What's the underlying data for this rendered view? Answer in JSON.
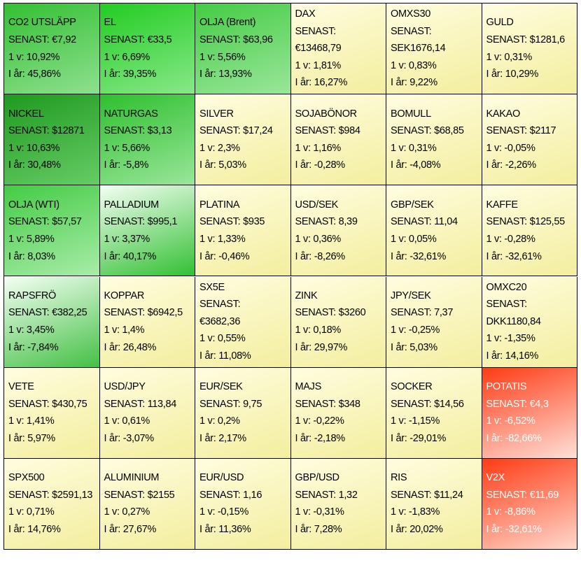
{
  "grid": {
    "rows": [
      [
        {
          "lines": [
            "CO2 UTSLÄPP",
            "SENAST: €7,92",
            "1 v: 10,92%",
            "I år: 45,86%"
          ],
          "colors": [
            "#33c033",
            "#8ee08e"
          ]
        },
        {
          "lines": [
            "EL",
            "SENAST: €33,5",
            "1 v: 6,69%",
            "I år: 39,35%"
          ],
          "colors": [
            "#22cc22",
            "#88e888"
          ]
        },
        {
          "lines": [
            "OLJA (Brent)",
            "SENAST: $63,96",
            "1 v: 5,56%",
            "I år: 13,93%"
          ],
          "colors": [
            "#44cc44",
            "#99e699"
          ]
        },
        {
          "lines": [
            "DAX",
            "SENAST:",
            "€13468,79",
            "1 v: 1,81%",
            "I år: 16,27%"
          ],
          "colors": [
            "#fffde0",
            "#f3ee9e"
          ]
        },
        {
          "lines": [
            "OMXS30",
            "SENAST:",
            "SEK1676,14",
            "1 v: 0,83%",
            "I år: 9,22%"
          ],
          "colors": [
            "#fffde0",
            "#f3ee9e"
          ]
        },
        {
          "lines": [
            "GULD",
            "SENAST: $1281,6",
            "1 v: 0,31%",
            "I år: 10,29%"
          ],
          "colors": [
            "#fffde0",
            "#f3ee9e"
          ]
        }
      ],
      [
        {
          "lines": [
            "NICKEL",
            "SENAST: $12871",
            "1 v: 10,63%",
            "I år: 30,48%"
          ],
          "colors": [
            "#1f9a1f",
            "#66cc66"
          ]
        },
        {
          "lines": [
            "NATURGAS",
            "SENAST: $3,13",
            "1 v: 5,66%",
            "I år: -5,8%"
          ],
          "colors": [
            "#2ec02e",
            "#99e699"
          ]
        },
        {
          "lines": [
            "SILVER",
            "SENAST: $17,24",
            "1 v: 2,3%",
            "I år: 5,03%"
          ],
          "colors": [
            "#fffde0",
            "#f3ee9e"
          ]
        },
        {
          "lines": [
            "SOJABÖNOR",
            "SENAST: $984",
            "1 v: 1,16%",
            "I år: -0,28%"
          ],
          "colors": [
            "#fffde0",
            "#f3ee9e"
          ]
        },
        {
          "lines": [
            "BOMULL",
            "SENAST: $68,85",
            "1 v: 0,31%",
            "I år: -4,08%"
          ],
          "colors": [
            "#fffde0",
            "#f3ee9e"
          ]
        },
        {
          "lines": [
            "KAKAO",
            "SENAST: $2117",
            "1 v: -0,05%",
            "I år: -2,26%"
          ],
          "colors": [
            "#fffde0",
            "#f3ee9e"
          ]
        }
      ],
      [
        {
          "lines": [
            "OLJA (WTI)",
            "SENAST: $57,57",
            "1 v: 5,89%",
            "I år: 8,03%"
          ],
          "colors": [
            "#44cc44",
            "#a8eca8"
          ]
        },
        {
          "lines": [
            "PALLADIUM",
            "SENAST: $995,1",
            "1 v: 3,37%",
            "I år: 40,17%"
          ],
          "colors": [
            "#f4fff4",
            "#33c033"
          ]
        },
        {
          "lines": [
            "PLATINA",
            "SENAST: $935",
            "1 v: 1,33%",
            "I år: -0,46%"
          ],
          "colors": [
            "#fffde0",
            "#f3ee9e"
          ]
        },
        {
          "lines": [
            "USD/SEK",
            "SENAST: 8,39",
            "1 v: 0,36%",
            "I år: -8,26%"
          ],
          "colors": [
            "#fffde0",
            "#f3ee9e"
          ]
        },
        {
          "lines": [
            "GBP/SEK",
            "SENAST: 11,04",
            "1 v: 0,05%",
            "I år: -32,61%"
          ],
          "colors": [
            "#fffde0",
            "#f3ee9e"
          ]
        },
        {
          "lines": [
            "KAFFE",
            "SENAST: $125,55",
            "1 v: -0,28%",
            "I år: -32,61%"
          ],
          "colors": [
            "#fffde0",
            "#f3ee9e"
          ]
        }
      ],
      [
        {
          "lines": [
            "RAPSFRÖ",
            "SENAST: €382,25",
            "1 v: 3,45%",
            "I år: -7,84%"
          ],
          "colors": [
            "#f4fff4",
            "#44c044"
          ]
        },
        {
          "lines": [
            "KOPPAR",
            "SENAST: $6942,5",
            "1 v: 1,4%",
            "I år: 26,48%"
          ],
          "colors": [
            "#fffde0",
            "#f3ee9e"
          ]
        },
        {
          "lines": [
            "SX5E",
            "SENAST:",
            "€3682,36",
            "1 v: 0,55%",
            "I år: 11,08%"
          ],
          "colors": [
            "#fffde0",
            "#f3ee9e"
          ]
        },
        {
          "lines": [
            "ZINK",
            "SENAST: $3260",
            "1 v: 0,18%",
            "I år: 29,97%"
          ],
          "colors": [
            "#fffde0",
            "#f3ee9e"
          ]
        },
        {
          "lines": [
            "JPY/SEK",
            "SENAST: 7,37",
            "1 v: -0,25%",
            "I år: 5,03%"
          ],
          "colors": [
            "#fffde0",
            "#f3ee9e"
          ]
        },
        {
          "lines": [
            "OMXC20",
            "SENAST:",
            "DKK1180,84",
            "1 v: -1,35%",
            "I år: 14,16%"
          ],
          "colors": [
            "#fffde0",
            "#f3ee9e"
          ]
        }
      ],
      [
        {
          "lines": [
            "VETE",
            "SENAST: $430,75",
            "1 v: 1,41%",
            "I år: 5,97%"
          ],
          "colors": [
            "#fffde0",
            "#f3ee9e"
          ]
        },
        {
          "lines": [
            "USD/JPY",
            "SENAST: 113,84",
            "1 v: 0,61%",
            "I år: -3,07%"
          ],
          "colors": [
            "#fffde0",
            "#f3ee9e"
          ]
        },
        {
          "lines": [
            "EUR/SEK",
            "SENAST: 9,75",
            "1 v: 0,2%",
            "I år: 2,17%"
          ],
          "colors": [
            "#fffde0",
            "#f3ee9e"
          ]
        },
        {
          "lines": [
            "MAJS",
            "SENAST: $348",
            "1 v: -0,22%",
            "I år: -2,18%"
          ],
          "colors": [
            "#fffde0",
            "#f3ee9e"
          ]
        },
        {
          "lines": [
            "SOCKER",
            "SENAST: $14,56",
            "1 v: -1,15%",
            "I år: -29,01%"
          ],
          "colors": [
            "#fffde0",
            "#f3ee9e"
          ]
        },
        {
          "lines": [
            "POTATIS",
            "SENAST: €4,3",
            "1 v: -6,52%",
            "I år: -82,66%"
          ],
          "colors": [
            "#ff3b14",
            "#ffe0d8"
          ],
          "text_color": "#ffffff"
        }
      ],
      [
        {
          "lines": [
            "SPX500",
            "SENAST: $2591,13",
            "1 v: 0,71%",
            "I år: 14,76%"
          ],
          "colors": [
            "#fffde0",
            "#f3ee9e"
          ]
        },
        {
          "lines": [
            "ALUMINIUM",
            "SENAST: $2155",
            "1 v: 0,27%",
            "I år: 27,67%"
          ],
          "colors": [
            "#fffde0",
            "#f3ee9e"
          ]
        },
        {
          "lines": [
            "EUR/USD",
            "SENAST: 1,16",
            "1 v: -0,15%",
            "I år: 11,36%"
          ],
          "colors": [
            "#fffde0",
            "#f3ee9e"
          ]
        },
        {
          "lines": [
            "GBP/USD",
            "SENAST: 1,32",
            "1 v: -0,31%",
            "I år: 7,28%"
          ],
          "colors": [
            "#fffde0",
            "#f3ee9e"
          ]
        },
        {
          "lines": [
            "RIS",
            "SENAST: $11,24",
            "1 v: -1,83%",
            "I år: 20,02%"
          ],
          "colors": [
            "#fffde0",
            "#f3ee9e"
          ]
        },
        {
          "lines": [
            "V2X",
            "SENAST: €11,69",
            "1 v: -8,86%",
            "I år: -32,61%"
          ],
          "colors": [
            "#ff3b14",
            "#ffd8cc"
          ],
          "text_color": "#ffffff"
        }
      ]
    ]
  }
}
